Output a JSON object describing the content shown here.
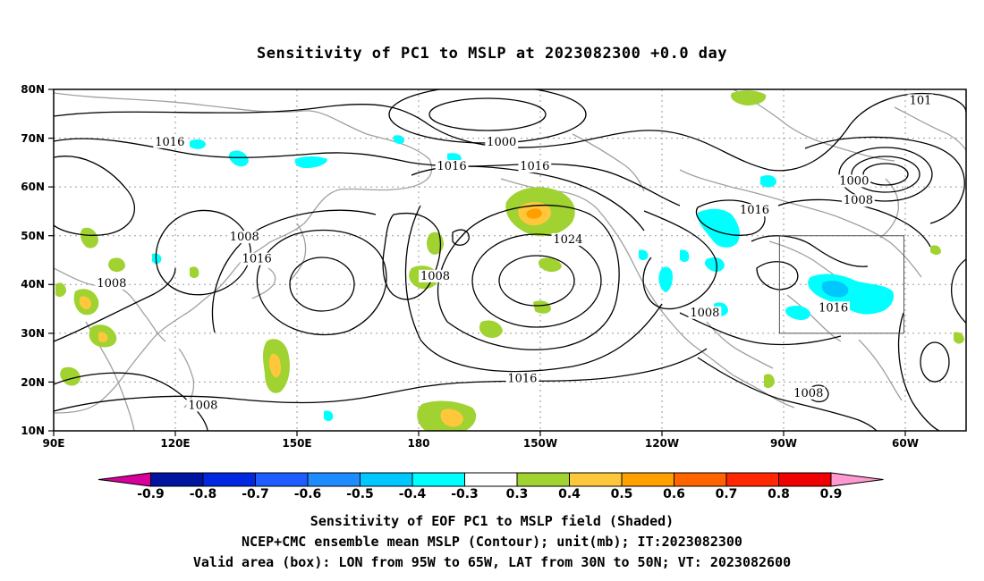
{
  "title": "Sensitivity of PC1 to MSLP at 2023082300 +0.0 day",
  "map": {
    "lat_labels": [
      "80N",
      "70N",
      "60N",
      "50N",
      "40N",
      "30N",
      "20N",
      "10N"
    ],
    "lon_labels": [
      "90E",
      "120E",
      "150E",
      "180",
      "150W",
      "120W",
      "90W",
      "60W"
    ],
    "contour_labels": [
      {
        "text": "1000",
        "lat": 68.5,
        "lon": -162
      },
      {
        "text": "1016",
        "lat": 68.5,
        "lon": 118
      },
      {
        "text": "1016",
        "lat": 63.5,
        "lon": -174
      },
      {
        "text": "1016",
        "lat": 63.5,
        "lon": -154
      },
      {
        "text": "1000",
        "lat": 60.5,
        "lon": -77
      },
      {
        "text": "1008",
        "lat": 56.5,
        "lon": -76
      },
      {
        "text": "1016",
        "lat": 54.5,
        "lon": -101
      },
      {
        "text": "1008",
        "lat": 49,
        "lon": 136
      },
      {
        "text": "1024",
        "lat": 48.5,
        "lon": -146
      },
      {
        "text": "1016",
        "lat": 44.5,
        "lon": 139
      },
      {
        "text": "1008",
        "lat": 41,
        "lon": 182
      },
      {
        "text": "1008",
        "lat": 39.5,
        "lon": 104
      },
      {
        "text": "1016",
        "lat": 34.5,
        "lon": -82
      },
      {
        "text": "1008",
        "lat": 33.5,
        "lon": -113
      },
      {
        "text": "1016",
        "lat": 20,
        "lon": -157
      },
      {
        "text": "1008",
        "lat": 17,
        "lon": -88
      },
      {
        "text": "1008",
        "lat": 14.5,
        "lon": 126
      },
      {
        "text": "101",
        "lat": 77,
        "lon": -61
      }
    ],
    "valid_box": {
      "lon_min": -95,
      "lon_max": -65,
      "lat_min": 30,
      "lat_max": 50
    },
    "colors": {
      "land": "#9a9a9a",
      "grid": "#9a9a9a",
      "contour": "#000000"
    }
  },
  "colorbar": {
    "labels": [
      "-0.9",
      "-0.8",
      "-0.7",
      "-0.6",
      "-0.5",
      "-0.4",
      "-0.3",
      "0.3",
      "0.4",
      "0.5",
      "0.6",
      "0.7",
      "0.8",
      "0.9"
    ],
    "colors": [
      "#d8009a",
      "#0014a0",
      "#0028e0",
      "#1e5cff",
      "#1e8cff",
      "#00c8ff",
      "#00ffff",
      "#ffffff",
      "#a0d232",
      "#ffc83c",
      "#ffa000",
      "#ff6400",
      "#ff2800",
      "#f00000",
      "#ff9ad2"
    ]
  },
  "captions": {
    "line1": "Sensitivity of EOF PC1 to MSLP field (Shaded)",
    "line2": "NCEP+CMC ensemble mean MSLP (Contour); unit(mb); IT:2023082300",
    "line3": "Valid area (box): LON from 95W to 65W, LAT from 30N to 50N; VT: 2023082600"
  }
}
